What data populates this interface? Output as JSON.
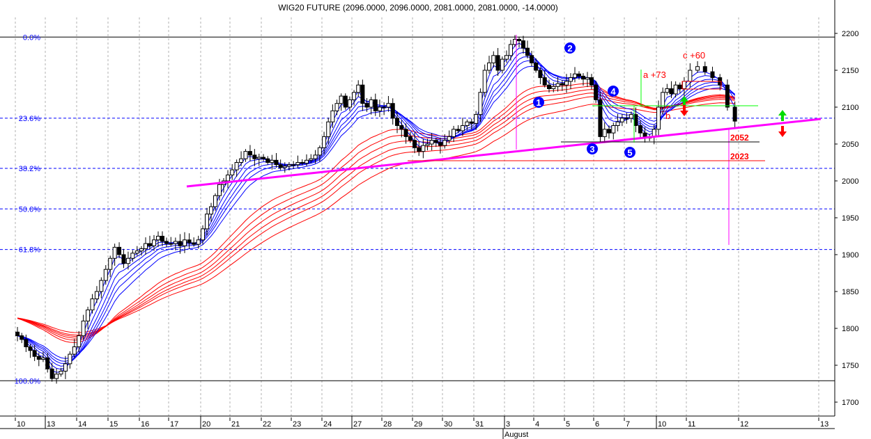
{
  "chart_data": {
    "type": "candlestick",
    "title": "WIG20 FUTURE (2096.0000, 2096.0000, 2081.0000, 2081.0000, -14.0000)",
    "ylim": [
      1680,
      2230
    ],
    "y_ticks": [
      1700,
      1750,
      1800,
      1850,
      1900,
      1950,
      2000,
      2050,
      2100,
      2150,
      2200
    ],
    "x_ticks": [
      "10",
      "13",
      "14",
      "15",
      "16",
      "17",
      "20",
      "21",
      "22",
      "23",
      "24",
      "27",
      "28",
      "29",
      "30",
      "31",
      "3",
      "4",
      "5",
      "6",
      "7",
      "10",
      "11",
      "12",
      "13"
    ],
    "month_label": "August",
    "grid": "vertical dotted at each day",
    "price_path": [
      {
        "day": "10",
        "prices": [
          1790,
          1785,
          1775,
          1770,
          1762,
          1758,
          1760
        ]
      },
      {
        "day": "13",
        "prices": [
          1745,
          1732,
          1738,
          1742,
          1752,
          1765,
          1775
        ]
      },
      {
        "day": "14",
        "prices": [
          1790,
          1810,
          1825,
          1840,
          1850,
          1865,
          1880
        ]
      },
      {
        "day": "15",
        "prices": [
          1895,
          1910,
          1900,
          1888,
          1895,
          1902,
          1905
        ]
      },
      {
        "day": "16",
        "prices": [
          1908,
          1915,
          1912,
          1920,
          1925,
          1918,
          1915
        ]
      },
      {
        "day": "17",
        "prices": [
          1915,
          1918,
          1912,
          1920,
          1916,
          1914,
          1920
        ]
      },
      {
        "day": "20",
        "prices": [
          1935,
          1955,
          1965,
          1980,
          1995,
          2000,
          2008
        ]
      },
      {
        "day": "21",
        "prices": [
          2015,
          2025,
          2030,
          2040,
          2035,
          2030,
          2032
        ]
      },
      {
        "day": "22",
        "prices": [
          2030,
          2025,
          2028,
          2022,
          2018,
          2020,
          2022
        ]
      },
      {
        "day": "23",
        "prices": [
          2022,
          2025,
          2024,
          2028,
          2030,
          2035,
          2045
        ]
      },
      {
        "day": "24",
        "prices": [
          2060,
          2080,
          2095,
          2105,
          2115,
          2100,
          2110
        ]
      },
      {
        "day": "27",
        "prices": [
          2120,
          2130,
          2105,
          2100,
          2110,
          2095,
          2100
        ]
      },
      {
        "day": "28",
        "prices": [
          2100,
          2105,
          2085,
          2075,
          2070,
          2060,
          2055
        ]
      },
      {
        "day": "29",
        "prices": [
          2045,
          2040,
          2048,
          2050,
          2055,
          2052,
          2048
        ]
      },
      {
        "day": "30",
        "prices": [
          2055,
          2060,
          2070,
          2068,
          2075,
          2080,
          2078
        ]
      },
      {
        "day": "31",
        "prices": [
          2090,
          2120,
          2150,
          2160,
          2170,
          2150,
          2165
        ]
      },
      {
        "day": "3",
        "prices": [
          2170,
          2185,
          2192,
          2190,
          2180,
          2170,
          2160
        ]
      },
      {
        "day": "4",
        "prices": [
          2150,
          2140,
          2130,
          2125,
          2128,
          2132,
          2130
        ]
      },
      {
        "day": "5",
        "prices": [
          2135,
          2140,
          2145,
          2142,
          2138,
          2140,
          2130
        ]
      },
      {
        "day": "6",
        "prices": [
          2110,
          2060,
          2070,
          2065,
          2075,
          2080,
          2085
        ]
      },
      {
        "day": "7",
        "prices": [
          2085,
          2090,
          2075,
          2065,
          2058,
          2060,
          2070
        ]
      },
      {
        "day": "10",
        "prices": [
          2100,
          2120,
          2125,
          2118,
          2130,
          2125,
          2135
        ]
      },
      {
        "day": "11",
        "prices": [
          2150,
          2155,
          2148,
          2140,
          2130,
          2100,
          2081
        ]
      }
    ],
    "fibonacci": [
      {
        "label": "0.0%",
        "price": 2195
      },
      {
        "label": "23.6%",
        "price": 2085
      },
      {
        "label": "38.2%",
        "price": 2017
      },
      {
        "label": "50.0%",
        "price": 1962
      },
      {
        "label": "61.8%",
        "price": 1907
      },
      {
        "label": "100.0%",
        "price": 1729
      }
    ],
    "annotations": {
      "waves": [
        "1",
        "2",
        "3",
        "4",
        "5"
      ],
      "a_label": "a +73",
      "b_label": "b",
      "c_label": "c +60",
      "level_1": "2052",
      "level_2": "2023"
    },
    "colors": {
      "blue_ribbon": "#0000ff",
      "red_ribbon": "#ff0000",
      "trendline": "#ff00ff",
      "fib": "#0000ff",
      "support": "#00ff00"
    }
  }
}
